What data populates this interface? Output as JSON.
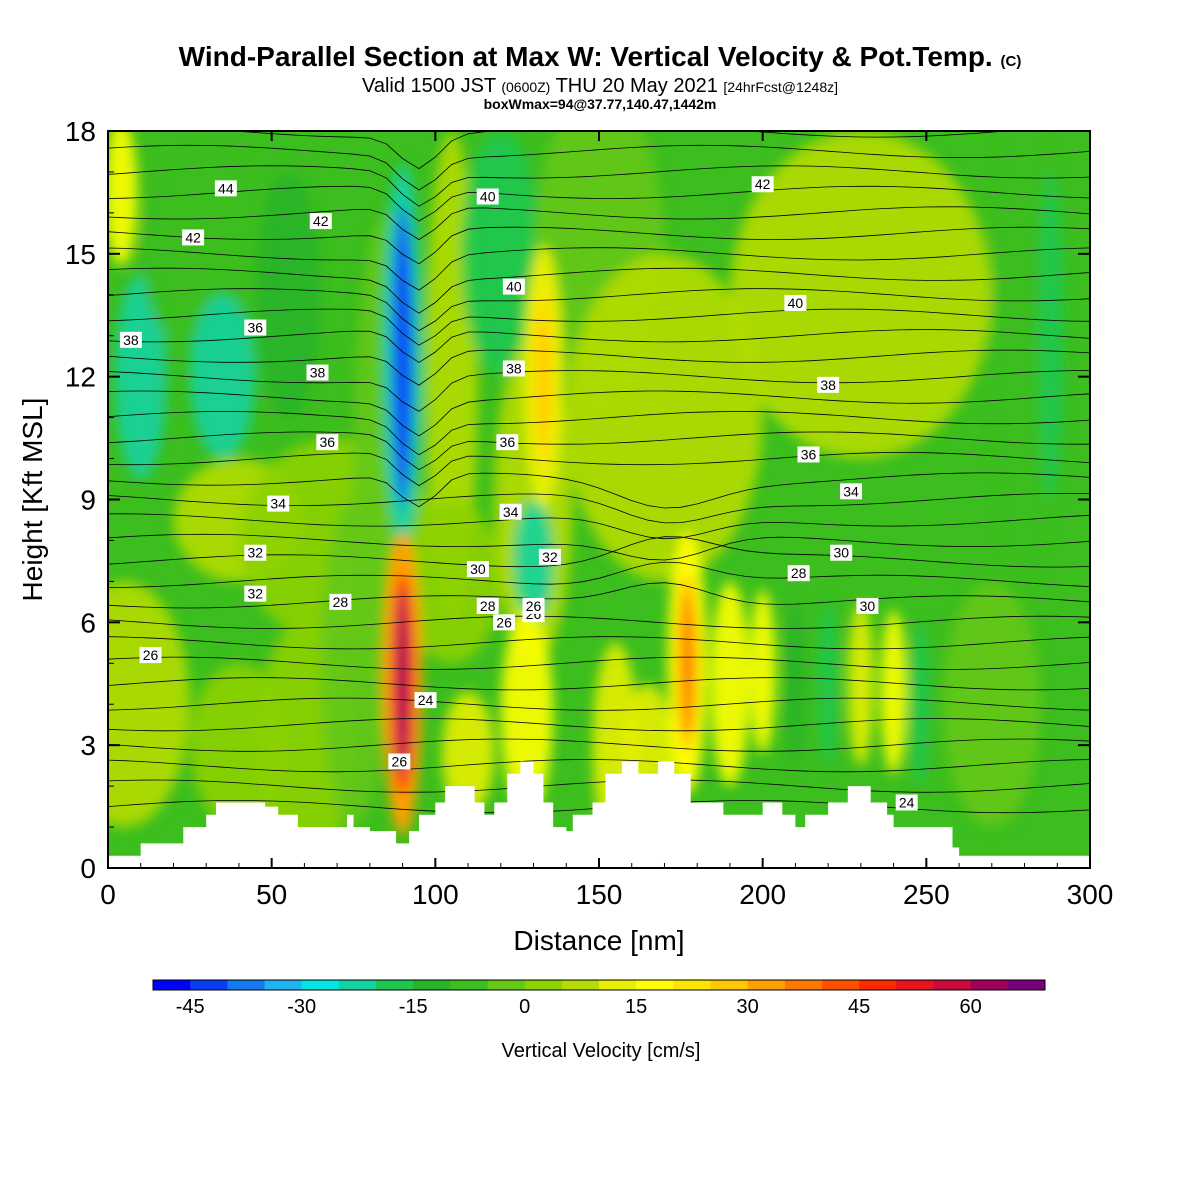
{
  "title": {
    "main": "Wind-Parallel Section at Max W: Vertical Velocity & Pot.Temp.",
    "copyright": "(C)",
    "valid_prefix": "Valid 1500 JST",
    "valid_z": "(0600Z)",
    "valid_date": "THU 20 May 2021",
    "fcst": "[24hrFcst@1248z]",
    "box_info": "boxWmax=94@37.77,140.47,1442m"
  },
  "chart_data": {
    "type": "heatmap",
    "xlabel": "Distance [nm]",
    "ylabel": "Height [Kft MSL]",
    "xlim": [
      0,
      300
    ],
    "ylim": [
      0,
      18
    ],
    "x_ticks": [
      "0",
      "50",
      "100",
      "150",
      "200",
      "250",
      "300"
    ],
    "y_ticks": [
      "0",
      "3",
      "6",
      "9",
      "12",
      "15",
      "18"
    ],
    "colorbar": {
      "label": "Vertical Velocity [cm/s]",
      "tick_labels": [
        "-45",
        "-30",
        "-15",
        "0",
        "15",
        "30",
        "45",
        "60"
      ],
      "tick_values": [
        -45,
        -30,
        -15,
        0,
        15,
        30,
        45,
        60
      ],
      "range": [
        -50,
        70
      ],
      "colors": [
        "#0000ff",
        "#0a3cf5",
        "#1478f0",
        "#1eb4f0",
        "#00e6e6",
        "#14d2a0",
        "#1ec850",
        "#28b428",
        "#3cbe1e",
        "#64c814",
        "#8cd200",
        "#b4dc00",
        "#e6f000",
        "#ffff00",
        "#ffe600",
        "#ffc800",
        "#ffa000",
        "#ff7800",
        "#ff5000",
        "#ff2800",
        "#e6141e",
        "#c80a3c",
        "#a0005a",
        "#780078"
      ]
    },
    "contour_labels": {
      "values": [
        "44",
        "42",
        "42",
        "40",
        "42",
        "40",
        "38",
        "36",
        "38",
        "38",
        "40",
        "36",
        "38",
        "36",
        "36",
        "34",
        "34",
        "34",
        "32",
        "32",
        "30",
        "32",
        "30",
        "30",
        "28",
        "28",
        "28",
        "26",
        "26",
        "26",
        "26",
        "24",
        "26",
        "24"
      ]
    },
    "features": [
      {
        "name": "downdraft",
        "x_nm": 90,
        "z_kft": [
          10,
          15
        ],
        "w_cm_s": -45
      },
      {
        "name": "updraft",
        "x_nm": 90,
        "z_kft": [
          3,
          6
        ],
        "w_cm_s": 60
      },
      {
        "name": "updraft",
        "x_nm": 177,
        "z_kft": [
          4,
          6
        ],
        "w_cm_s": 35
      },
      {
        "name": "updraft",
        "x_nm": 133,
        "z_kft": [
          11,
          13
        ],
        "w_cm_s": 25
      }
    ]
  }
}
